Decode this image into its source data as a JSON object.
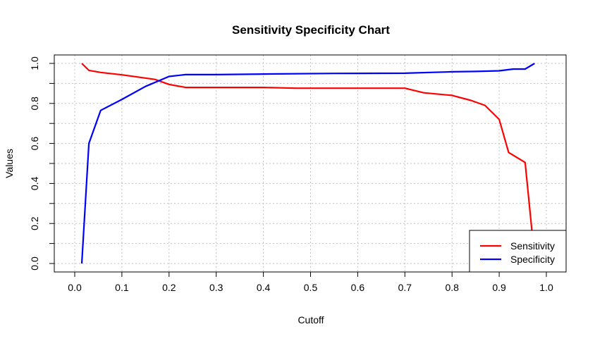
{
  "chart_data": {
    "type": "line",
    "title": "Sensitivity Specificity Chart",
    "xlabel": "Cutoff",
    "ylabel": "Values",
    "xlim": [
      0,
      1
    ],
    "ylim": [
      0,
      1
    ],
    "x_ticks": [
      0.0,
      0.1,
      0.2,
      0.3,
      0.4,
      0.5,
      0.6,
      0.7,
      0.8,
      0.9,
      1.0
    ],
    "x_tick_labels": [
      "0.0",
      "0.1",
      "0.2",
      "0.3",
      "0.4",
      "0.5",
      "0.6",
      "0.7",
      "0.8",
      "0.9",
      "1.0"
    ],
    "y_ticks": [
      0.0,
      0.2,
      0.4,
      0.6,
      0.8,
      1.0
    ],
    "y_tick_labels": [
      "0.0",
      "0.2",
      "0.4",
      "0.6",
      "0.8",
      "1.0"
    ],
    "grid": true,
    "legend_position": "bottom-right",
    "series": [
      {
        "name": "Sensitivity",
        "color": "#ff0000",
        "x": [
          0.015,
          0.03,
          0.055,
          0.1,
          0.17,
          0.2,
          0.235,
          0.3,
          0.4,
          0.47,
          0.55,
          0.6,
          0.7,
          0.74,
          0.8,
          0.84,
          0.87,
          0.9,
          0.92,
          0.955,
          0.97
        ],
        "y": [
          1.0,
          0.965,
          0.955,
          0.943,
          0.92,
          0.895,
          0.88,
          0.88,
          0.88,
          0.876,
          0.876,
          0.876,
          0.876,
          0.853,
          0.84,
          0.815,
          0.79,
          0.72,
          0.555,
          0.505,
          0.15
        ]
      },
      {
        "name": "Specificity",
        "color": "#0000ff",
        "x": [
          0.015,
          0.03,
          0.055,
          0.1,
          0.15,
          0.2,
          0.235,
          0.3,
          0.4,
          0.55,
          0.7,
          0.8,
          0.85,
          0.9,
          0.93,
          0.955,
          0.975
        ],
        "y": [
          0.0,
          0.6,
          0.765,
          0.82,
          0.885,
          0.935,
          0.944,
          0.944,
          0.947,
          0.95,
          0.951,
          0.958,
          0.96,
          0.963,
          0.972,
          0.972,
          1.0
        ]
      }
    ]
  }
}
